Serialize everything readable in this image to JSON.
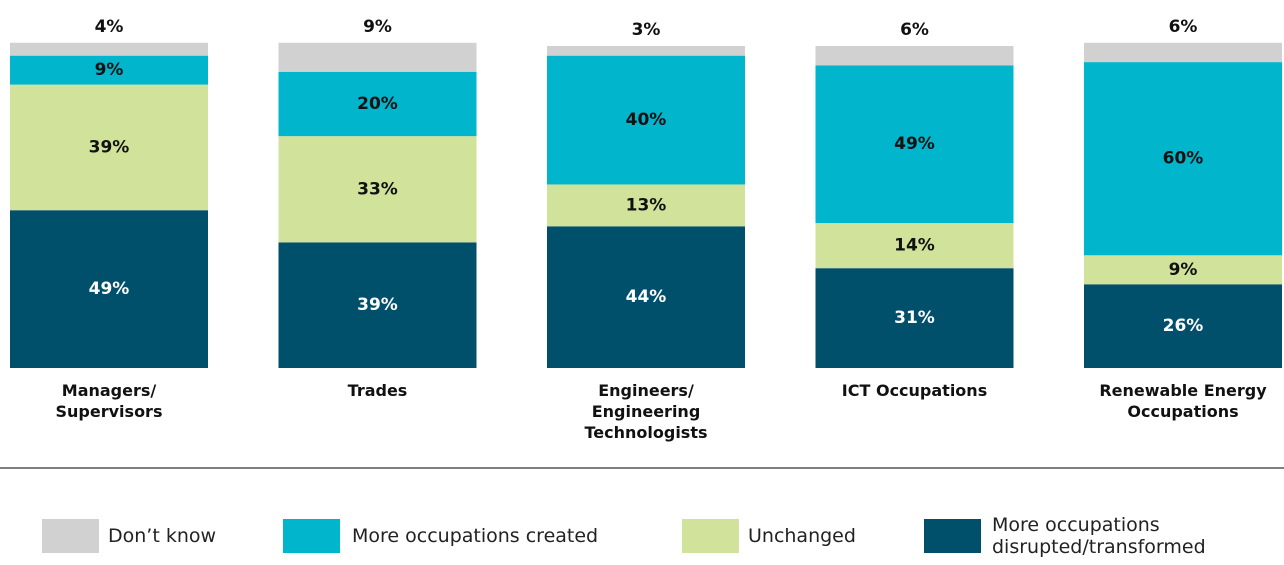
{
  "chart_data": {
    "type": "stacked-bar",
    "categories": [
      "Managers/\nSupervisors",
      "Trades",
      "Engineers/\nEngineering\nTechnologists",
      "ICT Occupations",
      "Renewable Energy\nOccupations"
    ],
    "ylim": [
      0,
      100
    ],
    "series": [
      {
        "name": "More occupations\ndisrupted/transformed",
        "color": "#004f6b",
        "values": [
          49,
          39,
          44,
          31,
          26
        ],
        "value_labels": [
          "49%",
          "39%",
          "44%",
          "31%",
          "26%"
        ]
      },
      {
        "name": "Unchanged",
        "color": "#d1e29b",
        "values": [
          39,
          33,
          13,
          14,
          9
        ],
        "value_labels": [
          "39%",
          "33%",
          "13%",
          "14%",
          "9%"
        ]
      },
      {
        "name": "More occupations created",
        "color": "#00b5cc",
        "values": [
          9,
          20,
          40,
          49,
          60
        ],
        "value_labels": [
          "9%",
          "20%",
          "40%",
          "49%",
          "60%"
        ]
      },
      {
        "name": "Don’t know",
        "color": "#d1d1d1",
        "values": [
          4,
          9,
          3,
          6,
          6
        ],
        "value_labels": [
          "4%",
          "9%",
          "3%",
          "6%",
          "6%"
        ]
      }
    ],
    "legend_order": [
      3,
      2,
      1,
      0
    ]
  }
}
